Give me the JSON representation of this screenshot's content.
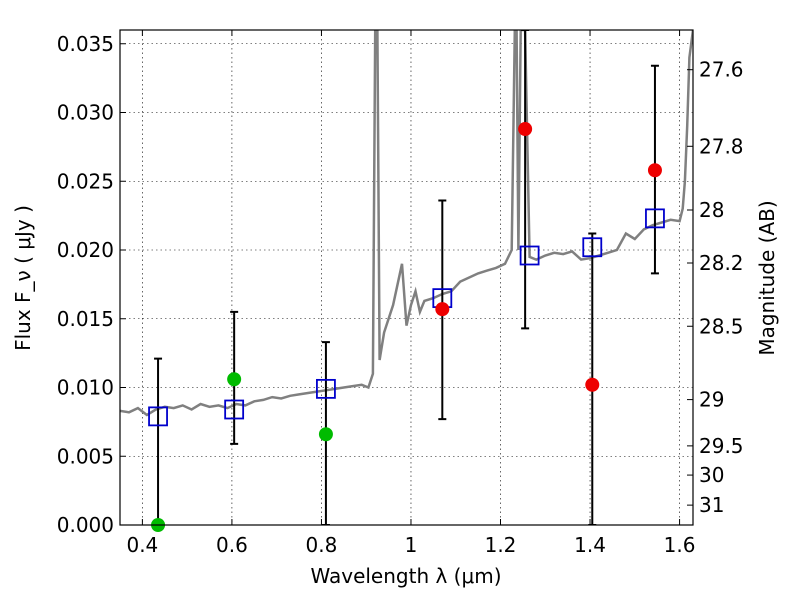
{
  "chart_data": {
    "type": "scatter",
    "xlabel": "Wavelength  λ (μm)",
    "ylabel": "Flux  F_ν  ( μJy )",
    "ylabel_right": "Magnitude (AB)",
    "xlim": [
      0.35,
      1.63
    ],
    "ylim": [
      0.0,
      0.036
    ],
    "grid": true,
    "x_ticks": [
      {
        "v": 0.4,
        "label": "0.4"
      },
      {
        "v": 0.6,
        "label": "0.6"
      },
      {
        "v": 0.8,
        "label": "0.8"
      },
      {
        "v": 1.0,
        "label": "1"
      },
      {
        "v": 1.2,
        "label": "1.2"
      },
      {
        "v": 1.4,
        "label": "1.4"
      },
      {
        "v": 1.6,
        "label": "1.6"
      }
    ],
    "y_ticks": [
      {
        "v": 0.0,
        "label": "0.000"
      },
      {
        "v": 0.005,
        "label": "0.005"
      },
      {
        "v": 0.01,
        "label": "0.010"
      },
      {
        "v": 0.015,
        "label": "0.015"
      },
      {
        "v": 0.02,
        "label": "0.020"
      },
      {
        "v": 0.025,
        "label": "0.025"
      },
      {
        "v": 0.03,
        "label": "0.030"
      },
      {
        "v": 0.035,
        "label": "0.035"
      }
    ],
    "mag_ticks": [
      {
        "v": 27.6,
        "label": "27.6"
      },
      {
        "v": 27.8,
        "label": "27.8"
      },
      {
        "v": 28.0,
        "label": "28"
      },
      {
        "v": 28.2,
        "label": "28.2"
      },
      {
        "v": 28.5,
        "label": "28.5"
      },
      {
        "v": 29.0,
        "label": "29"
      },
      {
        "v": 29.5,
        "label": "29.5"
      },
      {
        "v": 30.0,
        "label": "30"
      },
      {
        "v": 31.0,
        "label": "31"
      }
    ],
    "model_spectrum": {
      "color": "#808080",
      "x": [
        0.35,
        0.37,
        0.39,
        0.41,
        0.43,
        0.45,
        0.47,
        0.49,
        0.51,
        0.53,
        0.55,
        0.57,
        0.59,
        0.61,
        0.63,
        0.65,
        0.67,
        0.69,
        0.71,
        0.73,
        0.75,
        0.77,
        0.79,
        0.81,
        0.83,
        0.85,
        0.87,
        0.89,
        0.905,
        0.915,
        0.92,
        0.925,
        0.93,
        0.94,
        0.96,
        0.98,
        0.99,
        1.0,
        1.01,
        1.02,
        1.03,
        1.05,
        1.07,
        1.09,
        1.11,
        1.13,
        1.15,
        1.17,
        1.19,
        1.21,
        1.225,
        1.232,
        1.236,
        1.24,
        1.245,
        1.255,
        1.265,
        1.28,
        1.3,
        1.32,
        1.34,
        1.36,
        1.38,
        1.4,
        1.42,
        1.44,
        1.46,
        1.48,
        1.5,
        1.52,
        1.54,
        1.56,
        1.58,
        1.6,
        1.607,
        1.612,
        1.617,
        1.622,
        1.63
      ],
      "y": [
        0.0083,
        0.0082,
        0.0085,
        0.008,
        0.0084,
        0.0086,
        0.0085,
        0.0087,
        0.0084,
        0.0088,
        0.0086,
        0.0087,
        0.0085,
        0.0088,
        0.0087,
        0.009,
        0.0091,
        0.0093,
        0.0092,
        0.0094,
        0.0095,
        0.0096,
        0.0097,
        0.0098,
        0.0099,
        0.01,
        0.0101,
        0.0102,
        0.01,
        0.011,
        0.036,
        0.036,
        0.012,
        0.014,
        0.016,
        0.019,
        0.0145,
        0.016,
        0.017,
        0.0155,
        0.0163,
        0.0165,
        0.0168,
        0.017,
        0.0177,
        0.018,
        0.0183,
        0.0185,
        0.0187,
        0.019,
        0.02,
        0.036,
        0.036,
        0.02,
        0.036,
        0.036,
        0.0195,
        0.0193,
        0.0196,
        0.0198,
        0.0197,
        0.0199,
        0.0193,
        0.0194,
        0.0196,
        0.0198,
        0.02,
        0.0212,
        0.0208,
        0.0215,
        0.0218,
        0.022,
        0.0222,
        0.0221,
        0.023,
        0.025,
        0.029,
        0.034,
        0.036
      ]
    },
    "series": [
      {
        "name": "",
        "marker": "square",
        "color": "#0000cc",
        "x": [
          0.435,
          0.605,
          0.81,
          1.07,
          1.265,
          1.405,
          1.545
        ],
        "y": [
          0.0079,
          0.0084,
          0.0099,
          0.0165,
          0.0196,
          0.0202,
          0.0223
        ]
      },
      {
        "name": "",
        "marker": "circle",
        "color": "#00bb00",
        "x": [
          0.435,
          0.605,
          0.81
        ],
        "y": [
          0.0,
          0.0106,
          0.0066
        ]
      },
      {
        "name": "",
        "marker": "circle",
        "color": "#ee0000",
        "x": [
          1.07,
          1.255,
          1.405,
          1.545
        ],
        "y": [
          0.0157,
          0.0288,
          0.0102,
          0.0258
        ]
      }
    ],
    "error_bars": [
      {
        "x": 0.435,
        "lo": 0.0,
        "hi": 0.0121
      },
      {
        "x": 0.605,
        "lo": 0.0059,
        "hi": 0.0155
      },
      {
        "x": 0.81,
        "lo": 0.0,
        "hi": 0.0133
      },
      {
        "x": 1.07,
        "lo": 0.0077,
        "hi": 0.0236
      },
      {
        "x": 1.255,
        "lo": 0.0143,
        "hi": 0.036
      },
      {
        "x": 1.405,
        "lo": 0.0,
        "hi": 0.0212
      },
      {
        "x": 1.545,
        "lo": 0.0183,
        "hi": 0.0334
      }
    ]
  }
}
